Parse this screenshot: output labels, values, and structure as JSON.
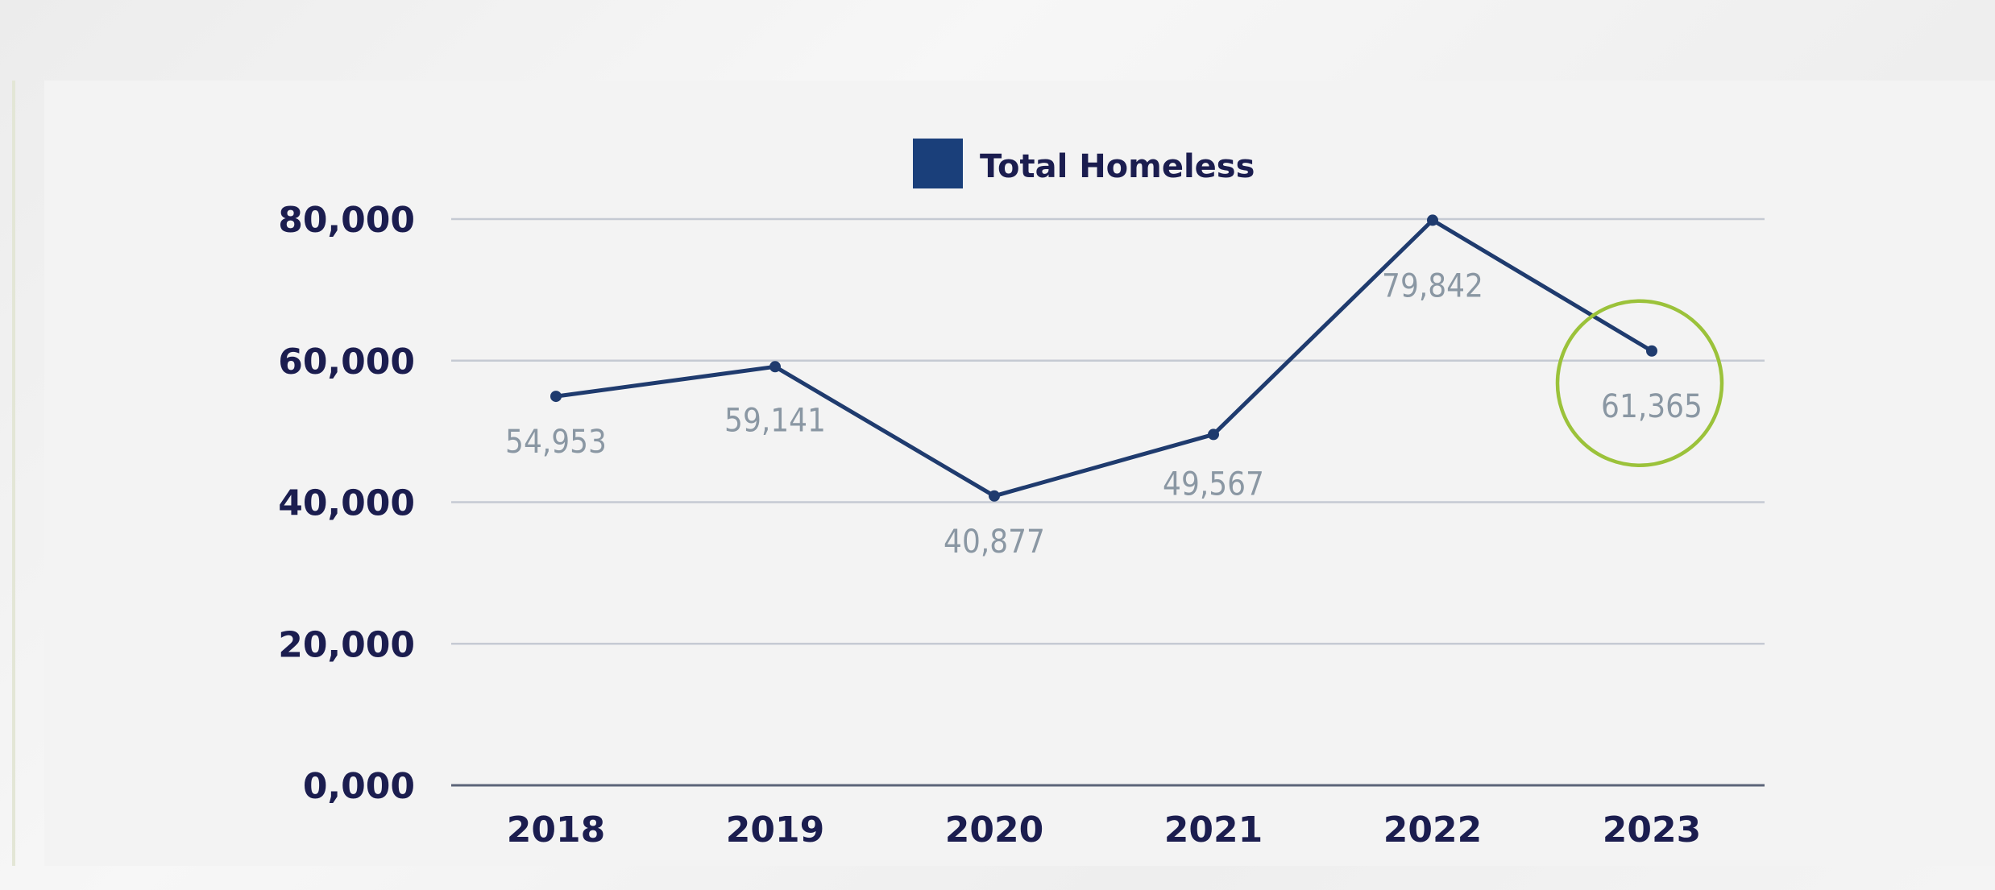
{
  "chart_data": {
    "type": "line",
    "categories": [
      "2018",
      "2019",
      "2020",
      "2021",
      "2022",
      "2023"
    ],
    "series": [
      {
        "name": "Total Homeless",
        "values": [
          54953,
          59141,
          40877,
          49567,
          79842,
          61365
        ],
        "labels": [
          "54,953",
          "59,141",
          "40,877",
          "49,567",
          "79,842",
          "61,365"
        ]
      }
    ],
    "ylim": [
      0,
      80000
    ],
    "yticks": [
      0,
      20000,
      40000,
      60000,
      80000
    ],
    "ytick_labels": [
      "0,000",
      "20,000",
      "40,000",
      "60,000",
      "80,000"
    ],
    "grid": true,
    "legend_position": "top-center",
    "highlight_category": "2023",
    "colors": {
      "line": "#1f3b6e",
      "legend_swatch": "#1a3f7a",
      "gridline": "#c5cad3",
      "axis": "#5b6478",
      "tick_text": "#1b1d4f",
      "data_label": "#8a97a3",
      "highlight_circle": "#9bc23a"
    }
  }
}
